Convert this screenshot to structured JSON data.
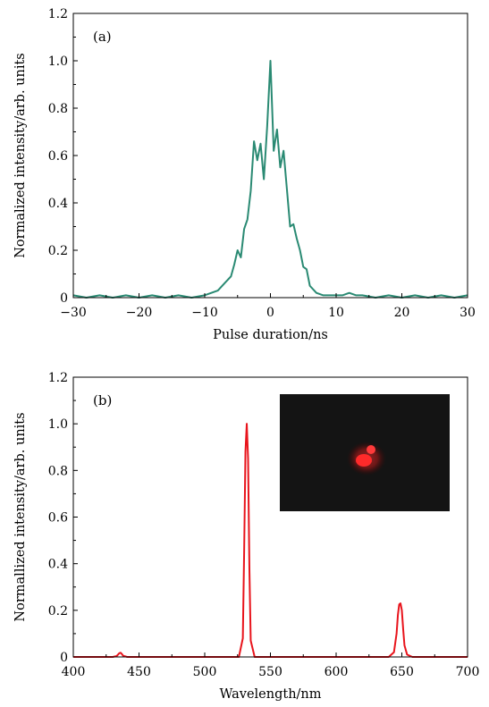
{
  "chart_data": [
    {
      "type": "line",
      "panel_tag": "(a)",
      "xlabel": "Pulse duration/ns",
      "ylabel": "Normalized intensity/arb. units",
      "xlim": [
        -30,
        30
      ],
      "ylim": [
        0,
        1.2
      ],
      "xticks": [
        -30,
        -20,
        -10,
        0,
        10,
        20,
        30
      ],
      "xtick_labels": [
        "−30",
        "−20",
        "−10",
        "0",
        "10",
        "20",
        "30"
      ],
      "yticks": [
        0,
        0.2,
        0.4,
        0.6,
        0.8,
        1.0,
        1.2
      ],
      "ytick_labels": [
        "0",
        "0.2",
        "0.4",
        "0.6",
        "0.8",
        "1.0",
        "1.2"
      ],
      "grid": false,
      "series": [
        {
          "color": "#2a8a73",
          "x": [
            -30,
            -28,
            -26,
            -24,
            -22,
            -20,
            -18,
            -16,
            -14,
            -12,
            -10,
            -9,
            -8,
            -7,
            -6,
            -5.5,
            -5,
            -4.5,
            -4,
            -3.5,
            -3,
            -2.5,
            -2,
            -1.5,
            -1,
            -0.5,
            0,
            0.5,
            1,
            1.5,
            2,
            2.5,
            3,
            3.5,
            4,
            4.5,
            5,
            5.5,
            6,
            7,
            8,
            9,
            10,
            11,
            12,
            13,
            14,
            16,
            18,
            20,
            22,
            24,
            26,
            28,
            30
          ],
          "y": [
            0.01,
            0.0,
            0.01,
            0.0,
            0.01,
            0.0,
            0.01,
            0.0,
            0.01,
            0.0,
            0.01,
            0.02,
            0.03,
            0.06,
            0.09,
            0.14,
            0.2,
            0.17,
            0.29,
            0.33,
            0.45,
            0.66,
            0.58,
            0.65,
            0.5,
            0.72,
            1.0,
            0.62,
            0.71,
            0.55,
            0.62,
            0.46,
            0.3,
            0.31,
            0.25,
            0.2,
            0.13,
            0.12,
            0.05,
            0.02,
            0.01,
            0.01,
            0.01,
            0.01,
            0.02,
            0.01,
            0.01,
            0.0,
            0.01,
            0.0,
            0.01,
            0.0,
            0.01,
            0.0,
            0.01
          ]
        }
      ]
    },
    {
      "type": "line",
      "panel_tag": "(b)",
      "xlabel": "Wavelength/nm",
      "ylabel": "Normallized intensity/arb. units",
      "xlim": [
        400,
        700
      ],
      "ylim": [
        0,
        1.2
      ],
      "xticks": [
        400,
        450,
        500,
        550,
        600,
        650,
        700
      ],
      "xtick_labels": [
        "400",
        "450",
        "500",
        "550",
        "600",
        "650",
        "700"
      ],
      "yticks": [
        0,
        0.2,
        0.4,
        0.6,
        0.8,
        1.0,
        1.2
      ],
      "ytick_labels": [
        "0",
        "0.2",
        "0.4",
        "0.6",
        "0.8",
        "1.0",
        "1.2"
      ],
      "grid": false,
      "inset": "dark photograph of a red laser spot",
      "series": [
        {
          "color": "#e8141c",
          "x": [
            400,
            430,
            433,
            434,
            435,
            436,
            437,
            438,
            441,
            520,
            526,
            529,
            530,
            531,
            532,
            533,
            534,
            535,
            538,
            640,
            644,
            646,
            647,
            648,
            649,
            650,
            651,
            652,
            654,
            658,
            700
          ],
          "y": [
            0.0,
            0.0,
            0.004,
            0.01,
            0.016,
            0.018,
            0.012,
            0.005,
            0.0,
            0.0,
            0.0,
            0.08,
            0.45,
            0.88,
            1.0,
            0.85,
            0.38,
            0.07,
            0.0,
            0.0,
            0.02,
            0.1,
            0.18,
            0.225,
            0.23,
            0.2,
            0.12,
            0.05,
            0.01,
            0.0,
            0.0
          ]
        }
      ]
    }
  ]
}
